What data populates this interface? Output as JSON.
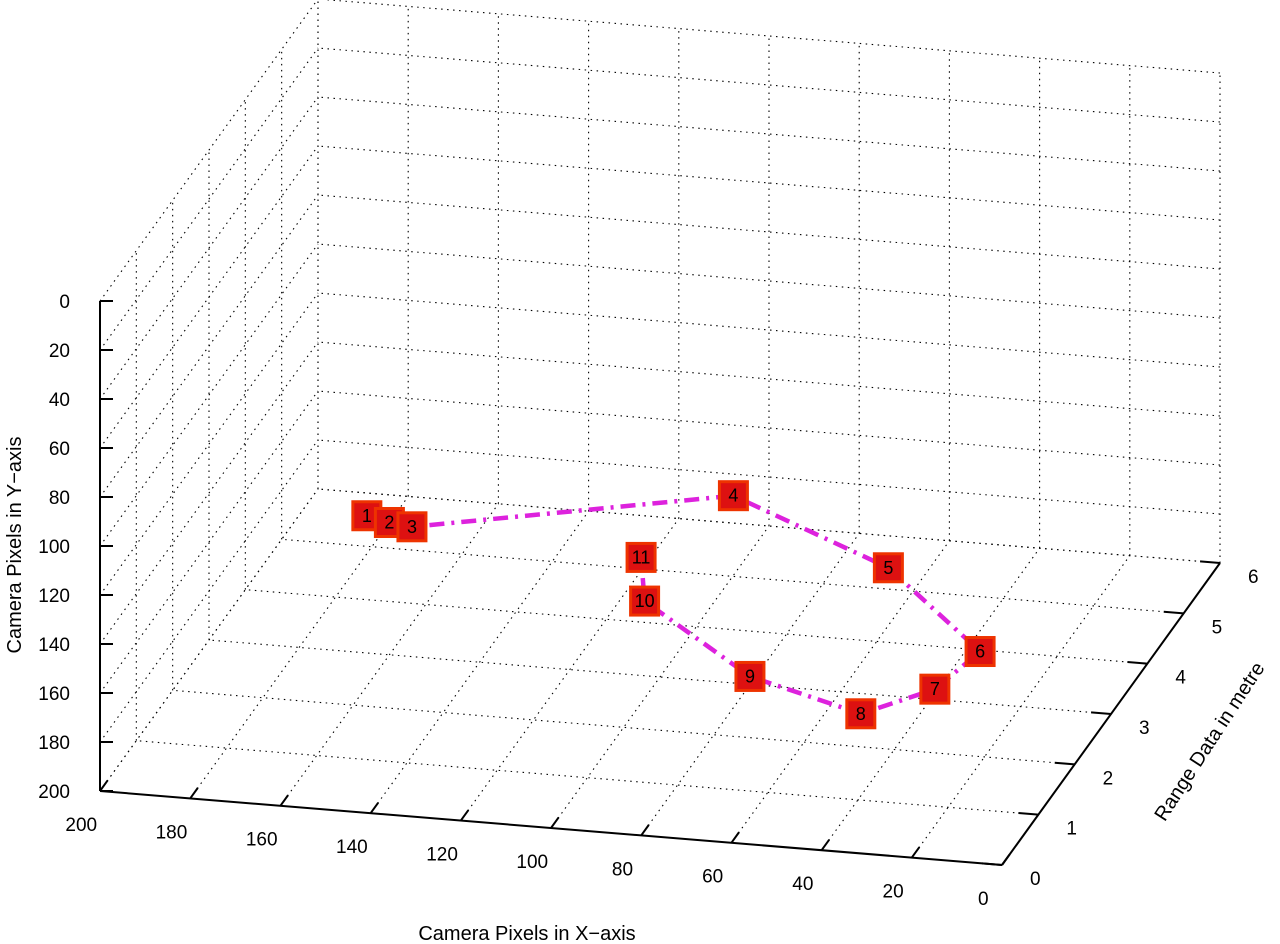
{
  "chart_data": {
    "type": "line3d",
    "xlabel": "Camera Pixels in X−axis",
    "ylabel": "Camera Pixels in Y−axis",
    "zlabel": "Range Data in metre",
    "xlim": [
      0,
      200
    ],
    "ylim": [
      0,
      200
    ],
    "zlim": [
      0,
      6
    ],
    "x_reversed": true,
    "y_reversed": true,
    "x_ticks": [
      0,
      20,
      40,
      60,
      80,
      100,
      120,
      140,
      160,
      180,
      200
    ],
    "y_ticks": [
      0,
      20,
      40,
      60,
      80,
      100,
      120,
      140,
      160,
      180,
      200
    ],
    "z_ticks": [
      0,
      1,
      2,
      3,
      4,
      5,
      6
    ],
    "grid": true,
    "series": [
      {
        "line_color": "#dd22dd",
        "marker_color": "#dd1111",
        "marker_edge_color": "#ee3300",
        "marker": "square",
        "line_style": "dash-dot",
        "points": [
          {
            "label": "1",
            "x": 165,
            "y": 144,
            "z": 3.0
          },
          {
            "label": "2",
            "x": 160,
            "y": 146,
            "z": 3.0
          },
          {
            "label": "3",
            "x": 155,
            "y": 147,
            "z": 3.0
          },
          {
            "label": "4",
            "x": 95,
            "y": 154,
            "z": 4.4
          },
          {
            "label": "5",
            "x": 55,
            "y": 163,
            "z": 3.7
          },
          {
            "label": "6",
            "x": 25,
            "y": 168,
            "z": 2.5
          },
          {
            "label": "7",
            "x": 31,
            "y": 174,
            "z": 2.0
          },
          {
            "label": "8",
            "x": 45,
            "y": 180,
            "z": 1.7
          },
          {
            "label": "9",
            "x": 72,
            "y": 175,
            "z": 2.0
          },
          {
            "label": "10",
            "x": 101,
            "y": 163,
            "z": 2.7
          },
          {
            "label": "11",
            "x": 105,
            "y": 154,
            "z": 3.1
          }
        ]
      }
    ]
  }
}
